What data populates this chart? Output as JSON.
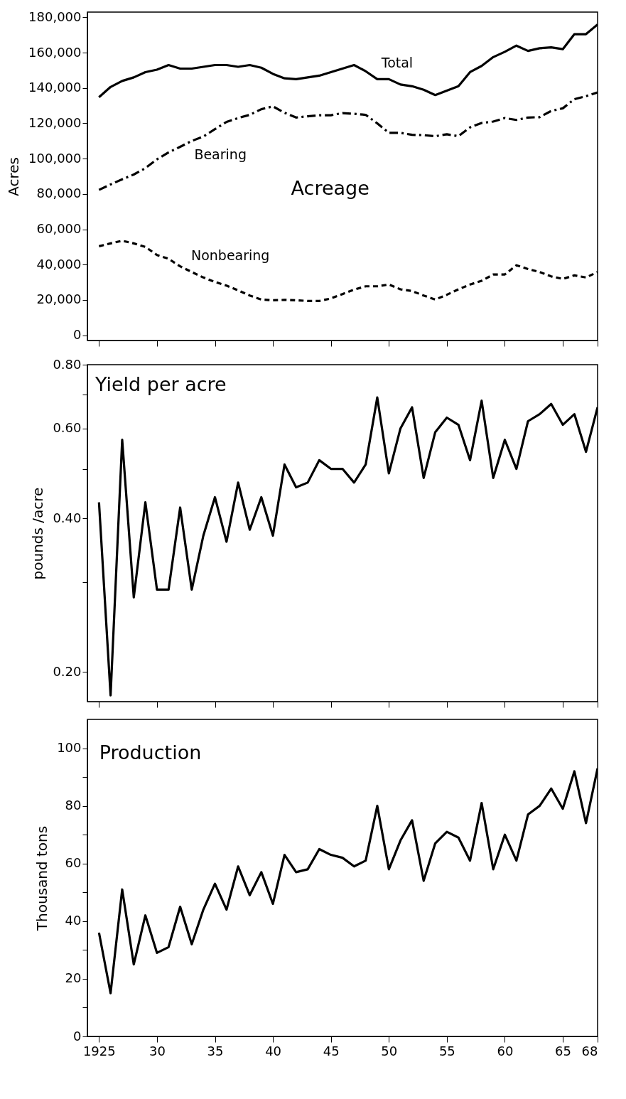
{
  "chart_data": [
    {
      "type": "line",
      "title": "Acreage",
      "ylabel": "Acres",
      "x": [
        1925,
        1926,
        1927,
        1928,
        1929,
        1930,
        1931,
        1932,
        1933,
        1934,
        1935,
        1936,
        1937,
        1938,
        1939,
        1940,
        1941,
        1942,
        1943,
        1944,
        1945,
        1946,
        1947,
        1948,
        1949,
        1950,
        1951,
        1952,
        1953,
        1954,
        1955,
        1956,
        1957,
        1958,
        1959,
        1960,
        1961,
        1962,
        1963,
        1964,
        1965,
        1966,
        1967,
        1968
      ],
      "series": [
        {
          "name": "Total",
          "color": "#000000",
          "line_style": "solid",
          "values": [
            134800,
            140600,
            144000,
            146000,
            149000,
            150400,
            153000,
            151000,
            151000,
            152000,
            153000,
            153000,
            152000,
            153000,
            151500,
            148000,
            145500,
            145000,
            146000,
            147000,
            149000,
            151000,
            153000,
            149500,
            145000,
            145000,
            142000,
            141000,
            139000,
            136000,
            138500,
            141000,
            149000,
            152500,
            157500,
            160500,
            164000,
            161000,
            162500,
            163000,
            162000,
            170500,
            170500,
            176000
          ]
        },
        {
          "name": "Bearing",
          "color": "#000000",
          "line_style": "dashdot",
          "values": [
            82300,
            85400,
            88300,
            91000,
            94600,
            99600,
            103500,
            106700,
            110000,
            112500,
            116700,
            120800,
            123000,
            124800,
            128000,
            129600,
            126000,
            123300,
            124000,
            124600,
            124600,
            125800,
            125400,
            124800,
            120000,
            114600,
            114600,
            113500,
            113300,
            112700,
            113800,
            112700,
            117700,
            120200,
            121000,
            123000,
            121900,
            123300,
            123500,
            127000,
            128500,
            133700,
            135400,
            137500
          ]
        },
        {
          "name": "Nonbearing",
          "color": "#000000",
          "line_style": "dashed",
          "values": [
            50400,
            52000,
            53500,
            52000,
            50000,
            45400,
            43300,
            39000,
            35800,
            32700,
            30200,
            28100,
            25400,
            22500,
            20200,
            19800,
            20000,
            19800,
            19400,
            19400,
            20800,
            23300,
            25800,
            27700,
            27700,
            28700,
            26000,
            25000,
            22500,
            20200,
            22900,
            26000,
            28700,
            30800,
            34400,
            34400,
            39600,
            37500,
            35800,
            33300,
            31900,
            33900,
            32700,
            35800
          ]
        }
      ],
      "xlim": [
        1924,
        1968
      ],
      "xticks": [
        1925,
        1930,
        1935,
        1940,
        1945,
        1950,
        1955,
        1960,
        1965,
        1968
      ],
      "ylim": [
        -3000,
        183000
      ],
      "yticks": [
        0,
        {
          "value": 20000,
          "label": "20,000"
        },
        {
          "value": 40000,
          "label": "40,000"
        },
        {
          "value": 60000,
          "label": "60,000"
        },
        {
          "value": 80000,
          "label": "80,000"
        },
        {
          "value": 100000,
          "label": "100,000"
        },
        {
          "value": 120000,
          "label": "120,000"
        },
        {
          "value": 140000,
          "label": "140,000"
        },
        {
          "value": 160000,
          "label": "160,000"
        },
        {
          "value": 180000,
          "label": "180,000"
        }
      ],
      "tick_labels": "y",
      "grid": false
    },
    {
      "type": "line",
      "title": "Yield per acre",
      "ylabel": "pounds /acre",
      "x": [
        1925,
        1926,
        1927,
        1928,
        1929,
        1930,
        1931,
        1932,
        1933,
        1934,
        1935,
        1936,
        1937,
        1938,
        1939,
        1940,
        1941,
        1942,
        1943,
        1944,
        1945,
        1946,
        1947,
        1948,
        1949,
        1950,
        1951,
        1952,
        1953,
        1954,
        1955,
        1956,
        1957,
        1958,
        1959,
        1960,
        1961,
        1962,
        1963,
        1964,
        1965,
        1966,
        1967,
        1968
      ],
      "series": [
        {
          "color": "#000000",
          "line_style": "solid",
          "values": [
            0.43,
            0.18,
            0.57,
            0.28,
            0.43,
            0.29,
            0.29,
            0.42,
            0.29,
            0.37,
            0.44,
            0.36,
            0.47,
            0.38,
            0.44,
            0.37,
            0.51,
            0.46,
            0.47,
            0.52,
            0.5,
            0.5,
            0.47,
            0.51,
            0.69,
            0.49,
            0.6,
            0.66,
            0.48,
            0.59,
            0.63,
            0.61,
            0.52,
            0.68,
            0.48,
            0.57,
            0.5,
            0.62,
            0.64,
            0.67,
            0.61,
            0.64,
            0.54,
            0.66
          ]
        }
      ],
      "xlim": [
        1924,
        1968
      ],
      "xticks": [
        1925,
        1930,
        1935,
        1940,
        1945,
        1950,
        1955,
        1960,
        1965,
        1968
      ],
      "ylim": [
        0.175,
        0.8
      ],
      "yticks": [
        {
          "value": 0.2,
          "label": "0.20"
        },
        {
          "value": 0.3,
          "label": null
        },
        {
          "value": 0.4,
          "label": "0.40"
        },
        {
          "value": 0.5,
          "label": null
        },
        {
          "value": 0.6,
          "label": "0.60"
        },
        {
          "value": 0.7,
          "label": null
        },
        {
          "value": 0.8,
          "label": "0.80"
        }
      ],
      "log": "y",
      "tick_labels": "y",
      "grid": false
    },
    {
      "type": "line",
      "title": "Production",
      "ylabel": "Thousand tons",
      "x": [
        1925,
        1926,
        1927,
        1928,
        1929,
        1930,
        1931,
        1932,
        1933,
        1934,
        1935,
        1936,
        1937,
        1938,
        1939,
        1940,
        1941,
        1942,
        1943,
        1944,
        1945,
        1946,
        1947,
        1948,
        1949,
        1950,
        1951,
        1952,
        1953,
        1954,
        1955,
        1956,
        1957,
        1958,
        1959,
        1960,
        1961,
        1962,
        1963,
        1964,
        1965,
        1966,
        1967,
        1968
      ],
      "series": [
        {
          "color": "#000000",
          "line_style": "solid",
          "values": [
            36,
            15,
            51,
            25,
            42,
            29,
            31,
            45,
            32,
            44,
            53,
            44,
            59,
            49,
            57,
            46,
            63,
            57,
            58,
            65,
            63,
            62,
            59,
            61,
            80,
            58,
            68,
            75,
            54,
            67,
            71,
            69,
            61,
            81,
            58,
            70,
            61,
            77,
            80,
            86,
            79,
            92,
            74,
            93
          ]
        }
      ],
      "xlim": [
        1924,
        1968
      ],
      "xticks": [
        1925,
        {
          "value": 1930,
          "label": "30"
        },
        {
          "value": 1935,
          "label": "35"
        },
        {
          "value": 1940,
          "label": "40"
        },
        {
          "value": 1945,
          "label": "45"
        },
        {
          "value": 1950,
          "label": "50"
        },
        {
          "value": 1955,
          "label": "55"
        },
        {
          "value": 1960,
          "label": "60"
        },
        {
          "value": 1965,
          "label": "65"
        },
        {
          "value": 1968,
          "label": "68"
        }
      ],
      "ylim": [
        0,
        110
      ],
      "yticks": [
        0,
        {
          "value": 10,
          "label": null
        },
        20,
        {
          "value": 30,
          "label": null
        },
        40,
        {
          "value": 50,
          "label": null
        },
        60,
        {
          "value": 70,
          "label": null
        },
        80,
        {
          "value": 90,
          "label": null
        },
        100
      ],
      "grid": false
    }
  ]
}
